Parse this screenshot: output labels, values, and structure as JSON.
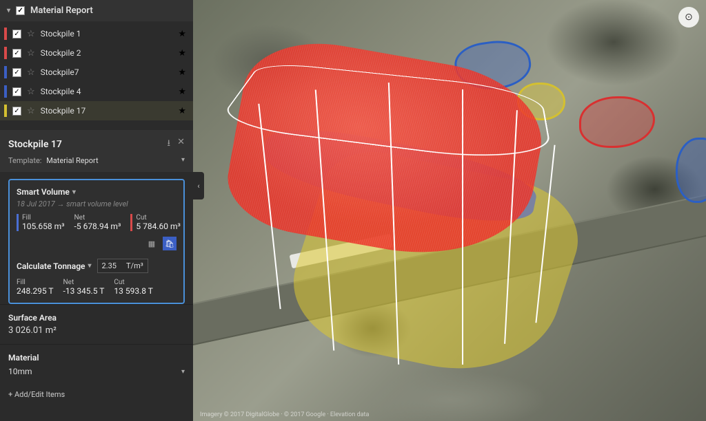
{
  "report": {
    "title": "Material Report",
    "items": [
      {
        "label": "Stockpile 1",
        "color": "#d94a4a",
        "checked": true,
        "fav": true
      },
      {
        "label": "Stockpile 2",
        "color": "#d94a4a",
        "checked": true,
        "fav": true
      },
      {
        "label": "Stockpile7",
        "color": "#3b5fc4",
        "checked": true,
        "fav": true
      },
      {
        "label": "Stockpile 4",
        "color": "#3b5fc4",
        "checked": true,
        "fav": true
      },
      {
        "label": "Stockpile 17",
        "color": "#d4c030",
        "checked": true,
        "fav": true,
        "selected": true
      }
    ]
  },
  "detail": {
    "title": "Stockpile 17",
    "template_label": "Template:",
    "template_value": "Material Report"
  },
  "volume": {
    "title": "Smart Volume",
    "date": "18 Jul 2017",
    "mode": "smart volume level",
    "fill_label": "Fill",
    "fill_value": "105.658 m³",
    "net_label": "Net",
    "net_value": "-5 678.94 m³",
    "cut_label": "Cut",
    "cut_value": "5 784.60 m³"
  },
  "tonnage": {
    "title": "Calculate Tonnage",
    "density": "2.35",
    "unit": "T/m³",
    "fill_label": "Fill",
    "fill_value": "248.295 T",
    "net_label": "Net",
    "net_value": "-13 345.5 T",
    "cut_label": "Cut",
    "cut_value": "13 593.8 T"
  },
  "surface": {
    "label": "Surface Area",
    "value": "3 026.01 m²"
  },
  "material": {
    "label": "Material",
    "value": "10mm"
  },
  "add_link": "+ Add/Edit Items",
  "viewport": {
    "regions": {
      "blue": "#2b5fc4",
      "yellow": "#d4c030",
      "red": "#d93030"
    },
    "attribution": "Imagery © 2017 DigitalGlobe · © 2017 Google · Elevation data"
  }
}
